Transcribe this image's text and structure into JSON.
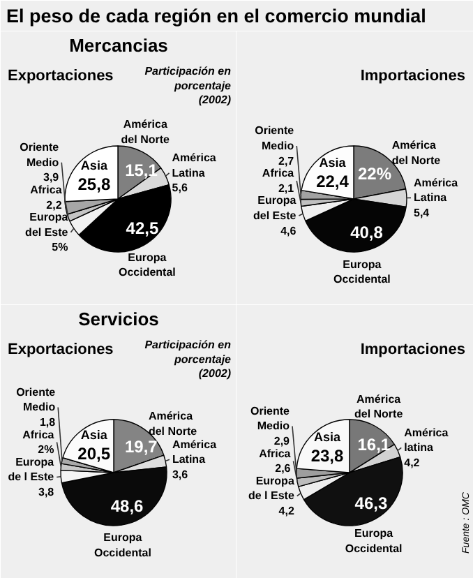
{
  "chart_data": [
    {
      "type": "pie",
      "title": "Exportaciones",
      "subtitle": "Mercancias",
      "annotations": [
        "El peso de cada región en el comercio mundial",
        "Participación en porcentaje (2002)"
      ],
      "categories": [
        "América del Norte",
        "América Latina",
        "Europa Occidental",
        "Europa del Este",
        "Africa",
        "Oriente Medio",
        "Asia"
      ],
      "values": [
        15.1,
        5.6,
        42.5,
        5,
        2.2,
        3.9,
        25.8
      ],
      "value_labels": [
        "15,1",
        "5,6",
        "42,5",
        "5%",
        "2,2",
        "3,9",
        "25,8"
      ],
      "colors": [
        "#808080",
        "#dadada",
        "#000000",
        "#f2f2f2",
        "#c4c4c4",
        "#a6a6a6",
        "#ffffff"
      ]
    },
    {
      "type": "pie",
      "title": "Importaciones",
      "categories": [
        "América del Norte",
        "América Latina",
        "Europa Occidental",
        "Europa del Este",
        "Africa",
        "Oriente Medio",
        "Asia"
      ],
      "values": [
        22,
        5.4,
        40.8,
        4.6,
        2.1,
        2.7,
        22.4
      ],
      "value_labels": [
        "22%",
        "5,4",
        "40,8",
        "4,6",
        "2,1",
        "2,7",
        "22,4"
      ],
      "colors": [
        "#7c7c7c",
        "#d6d6d6",
        "#050505",
        "#f0f0f0",
        "#c0c0c0",
        "#a2a2a2",
        "#fdfdfd"
      ]
    },
    {
      "type": "pie",
      "title": "Exportaciones",
      "subtitle": "Servicios",
      "annotations": [
        "Participación en porcentaje (2002)"
      ],
      "categories": [
        "América del Norte",
        "América Latina",
        "Europa Occidental",
        "Europa de l Este",
        "Africa",
        "Oriente Medio",
        "Asia"
      ],
      "values": [
        19.7,
        3.6,
        48.6,
        3.8,
        2,
        1.8,
        20.5
      ],
      "value_labels": [
        "19,7",
        "3,6",
        "48,6",
        "3,8",
        "2%",
        "1,8",
        "20,5"
      ],
      "colors": [
        "#848484",
        "#dedede",
        "#0a0a0a",
        "#f4f4f4",
        "#c8c8c8",
        "#aaaaaa",
        "#fbfbfb"
      ]
    },
    {
      "type": "pie",
      "title": "Importaciones",
      "annotations": [
        "Fuente : OMC"
      ],
      "categories": [
        "América del Norte",
        "América latina",
        "Europa Occidental",
        "Europa de l Este",
        "Africa",
        "Oriente Medio",
        "Asia"
      ],
      "values": [
        16.1,
        4.2,
        46.3,
        4.2,
        2.6,
        2.9,
        23.8
      ],
      "value_labels": [
        "16,1",
        "4,2",
        "46,3",
        "4,2",
        "2,6",
        "2,9",
        "23,8"
      ],
      "colors": [
        "#787878",
        "#d2d2d2",
        "#101010",
        "#eeeeee",
        "#bcbcbc",
        "#9e9e9e",
        "#f9f9f9"
      ]
    }
  ]
}
